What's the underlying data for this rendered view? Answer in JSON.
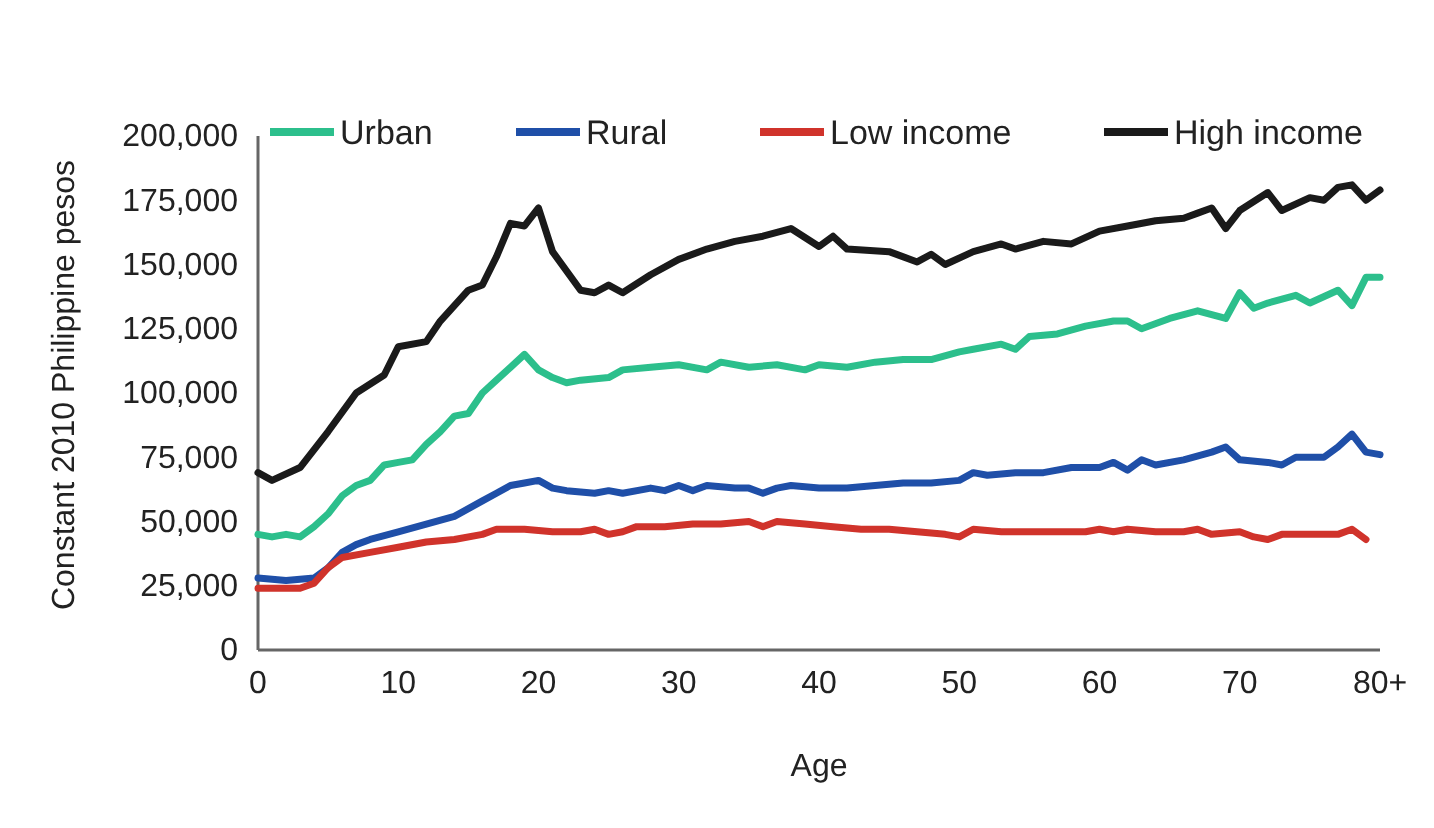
{
  "chart_data": {
    "type": "line",
    "xlabel": "Age",
    "ylabel": "Constant 2010 Philippine pesos",
    "xlim": [
      0,
      80
    ],
    "xticks": [
      0,
      10,
      20,
      30,
      40,
      50,
      60,
      70,
      {
        "value": 80,
        "label": "80+"
      }
    ],
    "ylim": [
      0,
      200000
    ],
    "yticks": [
      {
        "value": 0,
        "label": "0"
      },
      {
        "value": 25000,
        "label": "25,000"
      },
      {
        "value": 50000,
        "label": "50,000"
      },
      {
        "value": 75000,
        "label": "75,000"
      },
      {
        "value": 100000,
        "label": "100,000"
      },
      {
        "value": 125000,
        "label": "125,000"
      },
      {
        "value": 150000,
        "label": "150,000"
      },
      {
        "value": 175000,
        "label": "175,000"
      },
      {
        "value": 200000,
        "label": "200,000"
      }
    ],
    "grid": false,
    "legend": "top",
    "marker": "none",
    "line_style": "solid",
    "series": [
      {
        "name": "Urban",
        "color": "#2cbf8c",
        "x": [
          0,
          1,
          2,
          3,
          4,
          5,
          6,
          7,
          8,
          9,
          10,
          11,
          12,
          13,
          14,
          15,
          16,
          17,
          18,
          19,
          20,
          21,
          22,
          23,
          25,
          26,
          28,
          30,
          32,
          33,
          35,
          37,
          39,
          40,
          42,
          44,
          46,
          48,
          50,
          51,
          53,
          54,
          55,
          57,
          59,
          61,
          62,
          63,
          65,
          67,
          69,
          70,
          71,
          72,
          74,
          75,
          77,
          78,
          79,
          80
        ],
        "values": [
          45000,
          44000,
          45000,
          44000,
          48000,
          53000,
          60000,
          64000,
          66000,
          72000,
          73000,
          74000,
          80000,
          85000,
          91000,
          92000,
          100000,
          105000,
          110000,
          115000,
          109000,
          106000,
          104000,
          105000,
          106000,
          109000,
          110000,
          111000,
          109000,
          112000,
          110000,
          111000,
          109000,
          111000,
          110000,
          112000,
          113000,
          113000,
          116000,
          117000,
          119000,
          117000,
          122000,
          123000,
          126000,
          128000,
          128000,
          125000,
          129000,
          132000,
          129000,
          139000,
          133000,
          135000,
          138000,
          135000,
          140000,
          134000,
          145000,
          145000
        ]
      },
      {
        "name": "Rural",
        "color": "#1f4fa8",
        "x": [
          0,
          2,
          4,
          5,
          6,
          7,
          8,
          10,
          12,
          14,
          16,
          17,
          18,
          19,
          20,
          21,
          22,
          24,
          25,
          26,
          28,
          29,
          30,
          31,
          32,
          34,
          35,
          36,
          37,
          38,
          40,
          42,
          44,
          46,
          48,
          50,
          51,
          52,
          54,
          56,
          58,
          60,
          61,
          62,
          63,
          64,
          66,
          68,
          69,
          70,
          72,
          73,
          74,
          76,
          77,
          78,
          79,
          80
        ],
        "values": [
          28000,
          27000,
          28000,
          32000,
          38000,
          41000,
          43000,
          46000,
          49000,
          52000,
          58000,
          61000,
          64000,
          65000,
          66000,
          63000,
          62000,
          61000,
          62000,
          61000,
          63000,
          62000,
          64000,
          62000,
          64000,
          63000,
          63000,
          61000,
          63000,
          64000,
          63000,
          63000,
          64000,
          65000,
          65000,
          66000,
          69000,
          68000,
          69000,
          69000,
          71000,
          71000,
          73000,
          70000,
          74000,
          72000,
          74000,
          77000,
          79000,
          74000,
          73000,
          72000,
          75000,
          75000,
          79000,
          84000,
          77000,
          76000
        ]
      },
      {
        "name": "Low income",
        "color": "#d0332b",
        "x": [
          0,
          3,
          4,
          5,
          6,
          8,
          10,
          12,
          14,
          16,
          17,
          19,
          21,
          23,
          24,
          25,
          26,
          27,
          29,
          31,
          33,
          35,
          36,
          37,
          39,
          41,
          43,
          45,
          47,
          49,
          50,
          51,
          53,
          55,
          57,
          59,
          60,
          61,
          62,
          64,
          66,
          67,
          68,
          70,
          71,
          72,
          73,
          75,
          77,
          78,
          79
        ],
        "values": [
          24000,
          24000,
          26000,
          32000,
          36000,
          38000,
          40000,
          42000,
          43000,
          45000,
          47000,
          47000,
          46000,
          46000,
          47000,
          45000,
          46000,
          48000,
          48000,
          49000,
          49000,
          50000,
          48000,
          50000,
          49000,
          48000,
          47000,
          47000,
          46000,
          45000,
          44000,
          47000,
          46000,
          46000,
          46000,
          46000,
          47000,
          46000,
          47000,
          46000,
          46000,
          47000,
          45000,
          46000,
          44000,
          43000,
          45000,
          45000,
          45000,
          47000,
          43000
        ]
      },
      {
        "name": "High income",
        "color": "#1a1a1a",
        "x": [
          0,
          1,
          3,
          5,
          7,
          9,
          10,
          12,
          13,
          15,
          16,
          17,
          18,
          19,
          20,
          21,
          23,
          24,
          25,
          26,
          28,
          30,
          32,
          34,
          36,
          38,
          40,
          41,
          42,
          45,
          47,
          48,
          49,
          51,
          53,
          54,
          56,
          58,
          60,
          62,
          64,
          66,
          67,
          68,
          69,
          70,
          72,
          73,
          75,
          76,
          77,
          78,
          79,
          80
        ],
        "values": [
          69000,
          66000,
          71000,
          85000,
          100000,
          107000,
          118000,
          120000,
          128000,
          140000,
          142000,
          153000,
          166000,
          165000,
          172000,
          155000,
          140000,
          139000,
          142000,
          139000,
          146000,
          152000,
          156000,
          159000,
          161000,
          164000,
          157000,
          161000,
          156000,
          155000,
          151000,
          154000,
          150000,
          155000,
          158000,
          156000,
          159000,
          158000,
          163000,
          165000,
          167000,
          168000,
          170000,
          172000,
          164000,
          171000,
          178000,
          171000,
          176000,
          175000,
          180000,
          181000,
          175000,
          179000
        ]
      }
    ]
  }
}
